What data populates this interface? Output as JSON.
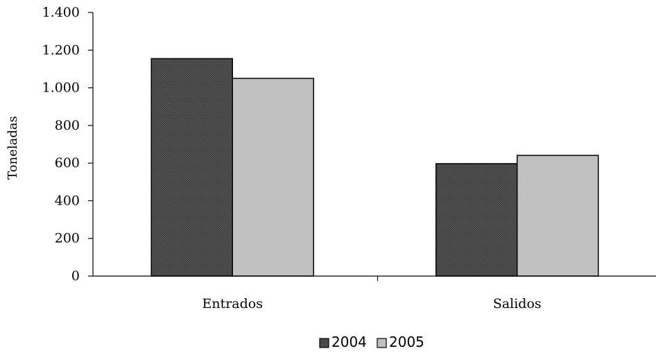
{
  "chart_data": {
    "type": "bar",
    "categories": [
      "Entrados",
      "Salidos"
    ],
    "series": [
      {
        "name": "2004",
        "values": [
          1155,
          597
        ],
        "color": "#4a4a4a"
      },
      {
        "name": "2005",
        "values": [
          1050,
          641
        ],
        "color": "#c0c0c0"
      }
    ],
    "xlabel": "",
    "ylabel": "Toneladas",
    "ylim": [
      0,
      1400
    ],
    "yticks": [
      0,
      200,
      400,
      600,
      800,
      1000,
      1200,
      1400
    ],
    "ytick_labels": [
      "0",
      "200",
      "400",
      "600",
      "800",
      "1.000",
      "1.200",
      "1.400"
    ],
    "grid": false,
    "legend_position": "bottom"
  }
}
